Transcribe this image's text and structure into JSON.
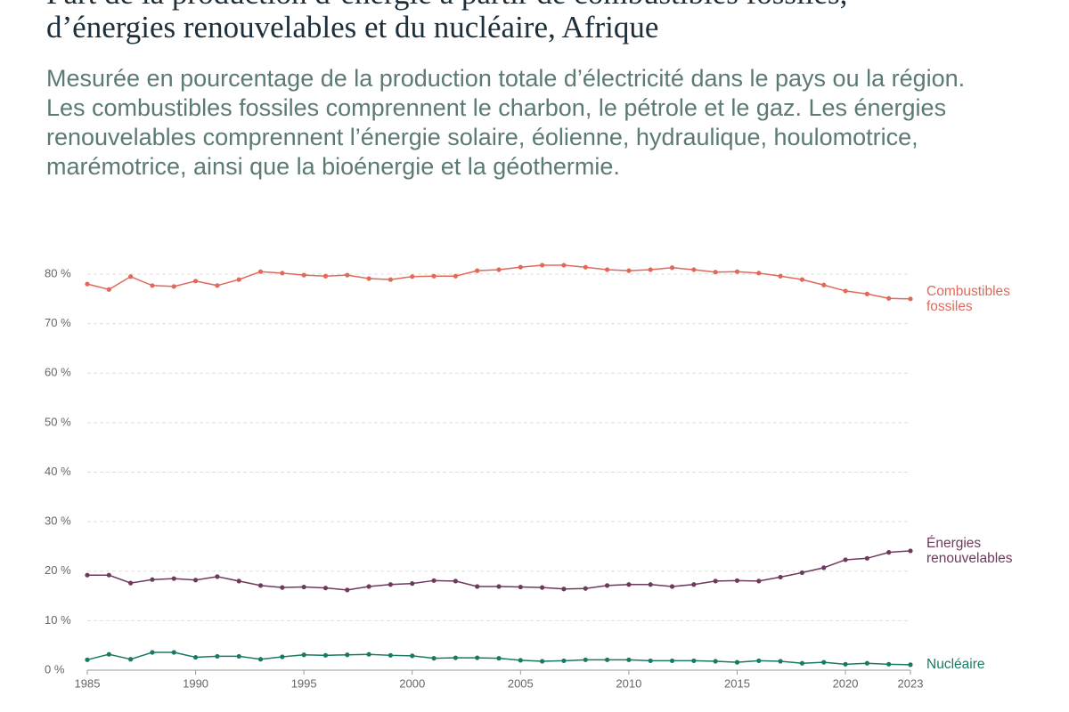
{
  "chart_data": {
    "type": "line",
    "title": "Part de la production d’énergie à partir de combustibles fossiles, d’énergies renouvelables et du nucléaire, Afrique",
    "subtitle": "Mesurée en pourcentage de la production totale d’électricité dans le pays ou la région. Les combustibles fossiles comprennent le charbon, le pétrole et le gaz. Les énergies renouvelables comprennent l’énergie solaire, éolienne, hydraulique, houlomotrice, marémotrice, ainsi que la bioénergie et la géothermie.",
    "x": [
      1985,
      1986,
      1987,
      1988,
      1989,
      1990,
      1991,
      1992,
      1993,
      1994,
      1995,
      1996,
      1997,
      1998,
      1999,
      2000,
      2001,
      2002,
      2003,
      2004,
      2005,
      2006,
      2007,
      2008,
      2009,
      2010,
      2011,
      2012,
      2013,
      2014,
      2015,
      2016,
      2017,
      2018,
      2019,
      2020,
      2021,
      2022,
      2023
    ],
    "xlim": [
      1985,
      2023
    ],
    "xticks": [
      1985,
      1990,
      1995,
      2000,
      2005,
      2010,
      2015,
      2020,
      2023
    ],
    "ylim": [
      0,
      80
    ],
    "yticks": [
      {
        "value": 0,
        "label": "0 %"
      },
      {
        "value": 10,
        "label": "10 %"
      },
      {
        "value": 20,
        "label": "20 %"
      },
      {
        "value": 30,
        "label": "30 %"
      },
      {
        "value": 40,
        "label": "40 %"
      },
      {
        "value": 50,
        "label": "50 %"
      },
      {
        "value": 60,
        "label": "60 %"
      },
      {
        "value": 70,
        "label": "70 %"
      },
      {
        "value": 80,
        "label": "80 %"
      }
    ],
    "grid": true,
    "series": [
      {
        "name": "Combustibles fossiles",
        "color": "#e0695a",
        "values": [
          78.0,
          76.9,
          79.5,
          77.7,
          77.5,
          78.6,
          77.7,
          78.9,
          80.5,
          80.2,
          79.8,
          79.6,
          79.8,
          79.1,
          78.9,
          79.5,
          79.6,
          79.6,
          80.7,
          80.9,
          81.4,
          81.8,
          81.8,
          81.4,
          80.9,
          80.7,
          80.9,
          81.3,
          80.9,
          80.4,
          80.5,
          80.2,
          79.6,
          78.9,
          77.8,
          76.6,
          76.0,
          75.1,
          75.0
        ]
      },
      {
        "name": "Énergies renouvelables",
        "color": "#6d3a5d",
        "values": [
          19.2,
          19.2,
          17.6,
          18.3,
          18.5,
          18.2,
          18.9,
          18.0,
          17.1,
          16.7,
          16.8,
          16.6,
          16.2,
          16.9,
          17.3,
          17.5,
          18.1,
          18.0,
          16.9,
          16.9,
          16.8,
          16.7,
          16.4,
          16.5,
          17.1,
          17.3,
          17.3,
          16.9,
          17.3,
          18.0,
          18.1,
          18.0,
          18.8,
          19.7,
          20.7,
          22.3,
          22.6,
          23.8,
          24.1
        ]
      },
      {
        "name": "Nucléaire",
        "color": "#187a62",
        "values": [
          2.1,
          3.2,
          2.2,
          3.6,
          3.6,
          2.6,
          2.8,
          2.8,
          2.2,
          2.7,
          3.1,
          3.0,
          3.1,
          3.2,
          3.0,
          2.9,
          2.4,
          2.5,
          2.5,
          2.4,
          2.0,
          1.8,
          1.9,
          2.1,
          2.1,
          2.1,
          1.9,
          1.9,
          1.9,
          1.8,
          1.6,
          1.9,
          1.8,
          1.4,
          1.6,
          1.2,
          1.4,
          1.2,
          1.1
        ]
      }
    ]
  }
}
